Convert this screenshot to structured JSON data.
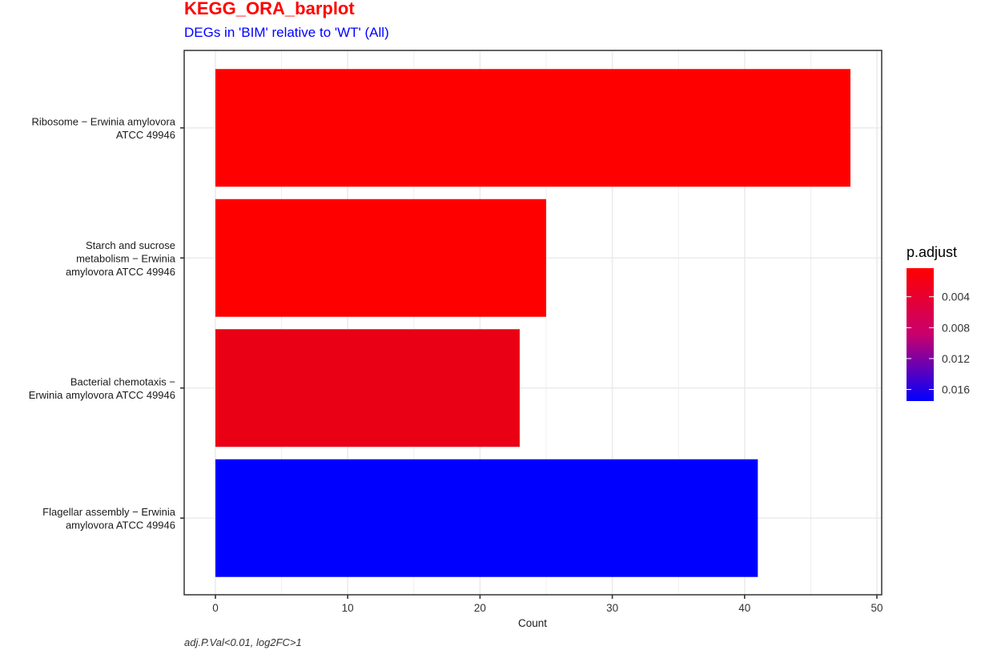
{
  "title": "KEGG_ORA_barplot",
  "subtitle": "DEGs in 'BIM' relative to 'WT' (All)",
  "caption": "adj.P.Val<0.01, log2FC>1",
  "colors": {
    "title": "#ff0000",
    "subtitle": "#0000ff",
    "low_padjust": "#ff0000",
    "high_padjust": "#0000ff",
    "grid": "#ebebeb"
  },
  "chart_data": {
    "type": "bar",
    "orientation": "horizontal",
    "xlabel": "Count",
    "ylabel": "",
    "xlim": [
      0,
      50
    ],
    "xticks": [
      0,
      10,
      20,
      30,
      40,
      50
    ],
    "grid": true,
    "categories": [
      "Ribosome − Erwinia amylovora ATCC 49946",
      "Starch and sucrose metabolism − Erwinia amylovora ATCC 49946",
      "Bacterial chemotaxis − Erwinia amylovora ATCC 49946",
      "Flagellar assembly − Erwinia amylovora ATCC 49946"
    ],
    "category_label_lines": [
      [
        "Ribosome − Erwinia amylovora",
        "ATCC 49946"
      ],
      [
        "Starch and sucrose",
        "metabolism − Erwinia",
        "amylovora ATCC 49946"
      ],
      [
        "Bacterial chemotaxis −",
        "Erwinia amylovora ATCC 49946"
      ],
      [
        "Flagellar assembly − Erwinia",
        "amylovora ATCC 49946"
      ]
    ],
    "values": [
      48,
      25,
      23,
      41
    ],
    "p_adjust": [
      0.0003,
      0.0003,
      0.0017,
      0.0175
    ],
    "legend": {
      "title": "p.adjust",
      "position": "right",
      "range": [
        0.0003,
        0.0175
      ],
      "ticks": [
        0.004,
        0.008,
        0.012,
        0.016
      ],
      "tick_labels": [
        "0.004",
        "0.008",
        "0.012",
        "0.016"
      ]
    }
  }
}
